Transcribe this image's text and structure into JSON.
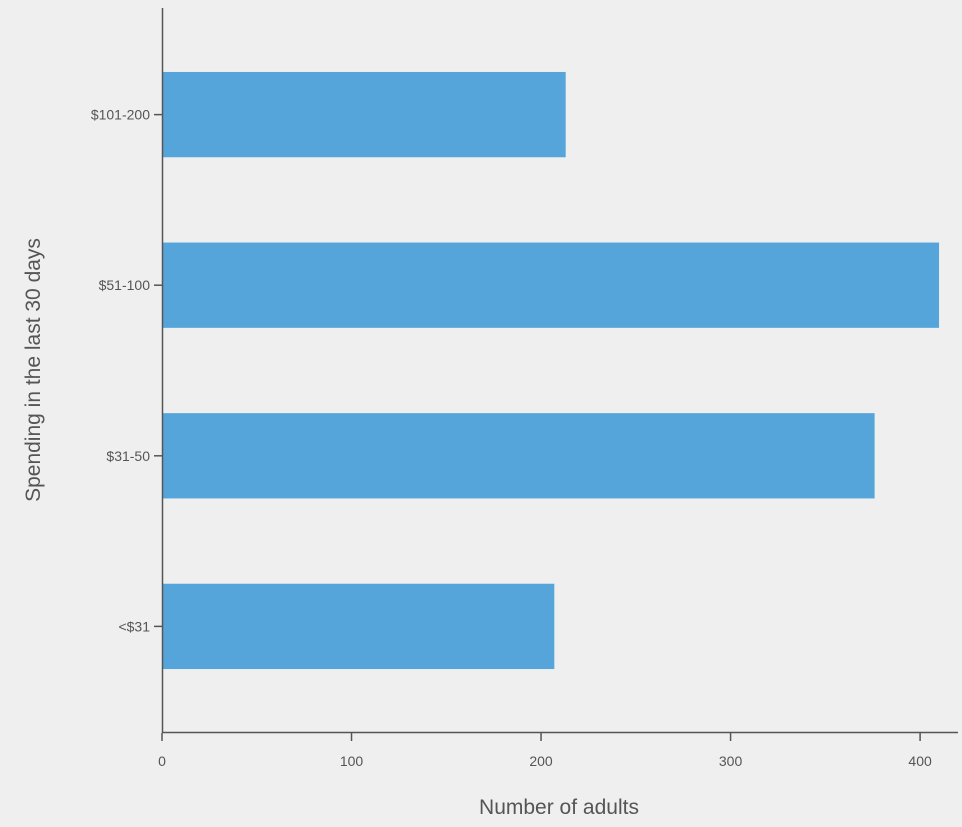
{
  "chart_data": {
    "type": "bar",
    "orientation": "horizontal",
    "categories": [
      "<$31",
      "$31-50",
      "$51-100",
      "$101-200"
    ],
    "values": [
      207,
      376,
      410,
      213
    ],
    "xlabel": "Number of adults",
    "ylabel": "Spending in the last 30 days",
    "xlim": [
      0,
      420
    ],
    "xticks": [
      0,
      100,
      200,
      300,
      400
    ],
    "bar_color": "#55a5da",
    "axis_color": "#555555",
    "background": "#efefef",
    "grid": false,
    "legend": "none"
  }
}
